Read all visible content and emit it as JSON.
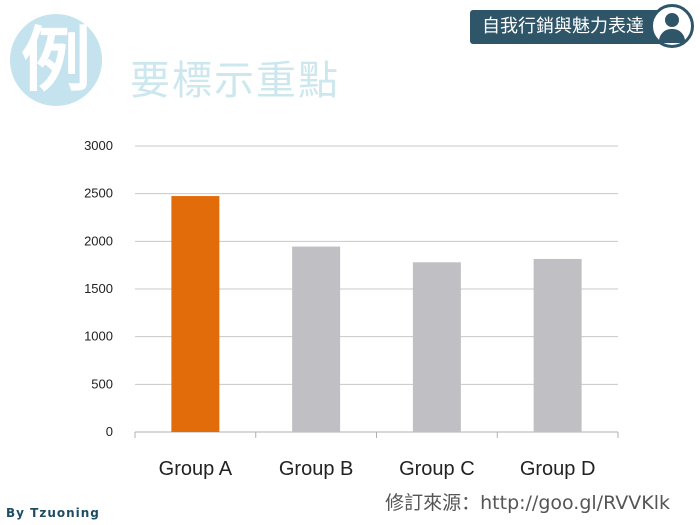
{
  "slide": {
    "badge_char": "例",
    "title": "要標示重點",
    "tag": "自我行銷與魅力表達",
    "source": "修訂來源：http://goo.gl/RVVKlk",
    "watermark": "By Tzuoning"
  },
  "chart_data": {
    "type": "bar",
    "categories": [
      "Group A",
      "Group B",
      "Group C",
      "Group D"
    ],
    "values": [
      2475,
      1945,
      1780,
      1815
    ],
    "ylim": [
      0,
      3000
    ],
    "yticks": [
      0,
      500,
      1000,
      1500,
      2000,
      2500,
      3000
    ],
    "grid": true,
    "colors": [
      "#e36c0a",
      "#c0bfc4",
      "#c0bfc4",
      "#c0bfc4"
    ],
    "title": "",
    "xlabel": "",
    "ylabel": ""
  }
}
